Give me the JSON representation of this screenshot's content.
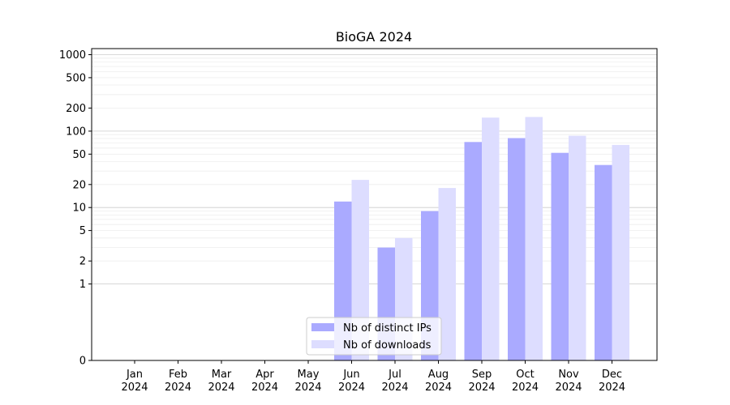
{
  "chart_data": {
    "type": "bar",
    "title": "BioGA 2024",
    "xlabel": "",
    "ylabel": "",
    "yscale": "symlog",
    "ylim": [
      0,
      1200
    ],
    "yticks": [
      0,
      1,
      2,
      5,
      10,
      20,
      50,
      100,
      200,
      500,
      1000
    ],
    "categories": [
      [
        "Jan",
        "2024"
      ],
      [
        "Feb",
        "2024"
      ],
      [
        "Mar",
        "2024"
      ],
      [
        "Apr",
        "2024"
      ],
      [
        "May",
        "2024"
      ],
      [
        "Jun",
        "2024"
      ],
      [
        "Jul",
        "2024"
      ],
      [
        "Aug",
        "2024"
      ],
      [
        "Sep",
        "2024"
      ],
      [
        "Oct",
        "2024"
      ],
      [
        "Nov",
        "2024"
      ],
      [
        "Dec",
        "2024"
      ]
    ],
    "series": [
      {
        "name": "Nb of distinct IPs",
        "color": "#aaaaff",
        "values": [
          0,
          0,
          0,
          0,
          0,
          12,
          3,
          9,
          72,
          81,
          52,
          36
        ]
      },
      {
        "name": "Nb of downloads",
        "color": "#ddddff",
        "values": [
          0,
          0,
          0,
          0,
          0,
          23,
          4,
          18,
          150,
          153,
          87,
          66
        ]
      }
    ],
    "grid": "horizontal",
    "legend_position": "lower-center"
  }
}
